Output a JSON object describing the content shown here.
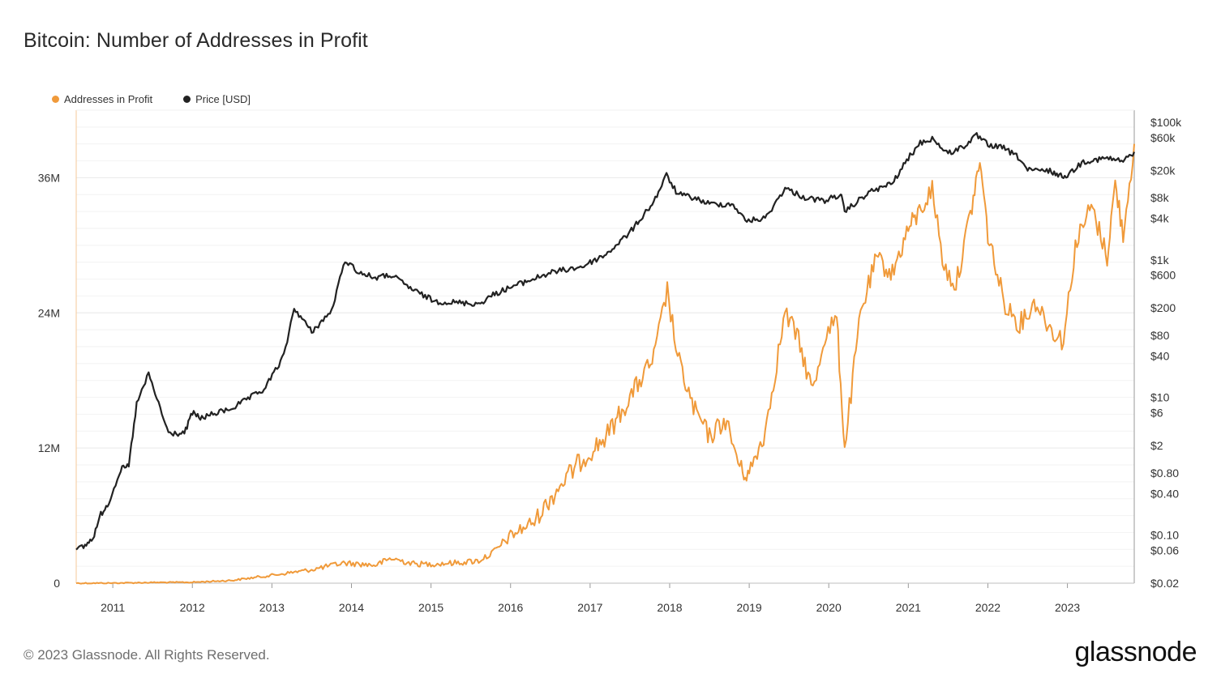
{
  "title": "Bitcoin: Number of Addresses in Profit",
  "footer": "© 2023 Glassnode. All Rights Reserved.",
  "brand": "glassnode",
  "colors": {
    "addresses": "#f09a3a",
    "price": "#222222",
    "grid": "#ebebeb",
    "axis": "#9a9a9a"
  },
  "legend": [
    {
      "label": "Addresses in Profit",
      "color": "#f09a3a"
    },
    {
      "label": "Price [USD]",
      "color": "#222222"
    }
  ],
  "chart_data": {
    "type": "line",
    "title": "Bitcoin: Number of Addresses in Profit",
    "x_ticks": [
      "2011",
      "2012",
      "2013",
      "2014",
      "2015",
      "2016",
      "2017",
      "2018",
      "2019",
      "2020",
      "2021",
      "2022",
      "2023"
    ],
    "x_range": [
      2010.54,
      2023.84
    ],
    "y_left": {
      "ticks": [
        0,
        12000000,
        24000000,
        36000000
      ],
      "tick_labels": [
        "0",
        "12M",
        "24M",
        "36M"
      ],
      "range": [
        0,
        42000000
      ]
    },
    "y_right": {
      "scale": "log",
      "range": [
        0.02,
        150000
      ],
      "ticks": [
        0.02,
        0.06,
        0.1,
        0.4,
        0.8,
        2,
        6,
        10,
        40,
        80,
        200,
        600,
        1000,
        4000,
        8000,
        20000,
        60000,
        100000
      ],
      "tick_labels": [
        "$0.02",
        "$0.06",
        "$0.10",
        "$0.40",
        "$0.80",
        "$2",
        "$6",
        "$10",
        "$40",
        "$80",
        "$200",
        "$600",
        "$1k",
        "$4k",
        "$8k",
        "$20k",
        "$60k",
        "$100k"
      ]
    },
    "grid": true,
    "legend_position": "top-left",
    "series": [
      {
        "name": "Addresses in Profit",
        "axis": "left",
        "x": [
          2010.54,
          2011.0,
          2011.5,
          2012.0,
          2012.5,
          2013.0,
          2013.5,
          2013.9,
          2014.3,
          2014.5,
          2014.8,
          2015.0,
          2015.3,
          2015.6,
          2015.8,
          2016.0,
          2016.3,
          2016.6,
          2016.9,
          2017.2,
          2017.5,
          2017.8,
          2017.97,
          2018.1,
          2018.3,
          2018.5,
          2018.7,
          2018.9,
          2019.0,
          2019.2,
          2019.45,
          2019.6,
          2019.8,
          2019.95,
          2020.1,
          2020.2,
          2020.4,
          2020.6,
          2020.8,
          2021.0,
          2021.1,
          2021.3,
          2021.45,
          2021.6,
          2021.8,
          2021.9,
          2022.0,
          2022.2,
          2022.4,
          2022.6,
          2022.8,
          2022.95,
          2023.1,
          2023.3,
          2023.5,
          2023.6,
          2023.7,
          2023.84
        ],
        "values": [
          0,
          10000,
          60000,
          80000,
          250000,
          700000,
          1200000,
          1800000,
          1600000,
          2200000,
          1700000,
          1700000,
          1800000,
          2000000,
          2800000,
          4200000,
          5500000,
          8500000,
          11000000,
          13000000,
          16500000,
          20000000,
          26000000,
          20000000,
          15500000,
          13000000,
          14500000,
          10000000,
          9700000,
          13500000,
          24000000,
          22000000,
          17000000,
          22000000,
          23500000,
          12000000,
          24000000,
          28800000,
          27500000,
          31500000,
          32500000,
          35000000,
          28000000,
          26500000,
          33500000,
          37500000,
          31000000,
          25000000,
          23000000,
          25000000,
          22500000,
          21500000,
          30000000,
          33500000,
          29000000,
          35500000,
          31000000,
          39000000
        ]
      },
      {
        "name": "Price [USD]",
        "axis": "right",
        "x": [
          2010.54,
          2010.65,
          2010.75,
          2010.85,
          2010.95,
          2011.1,
          2011.2,
          2011.3,
          2011.45,
          2011.7,
          2011.9,
          2012.0,
          2012.1,
          2012.5,
          2012.9,
          2013.15,
          2013.28,
          2013.5,
          2013.75,
          2013.92,
          2014.1,
          2014.3,
          2014.5,
          2014.8,
          2015.05,
          2015.3,
          2015.6,
          2015.8,
          2016.0,
          2016.5,
          2016.9,
          2017.2,
          2017.5,
          2017.8,
          2017.96,
          2018.1,
          2018.3,
          2018.5,
          2018.8,
          2018.95,
          2019.2,
          2019.45,
          2019.7,
          2019.95,
          2020.15,
          2020.2,
          2020.5,
          2020.8,
          2021.0,
          2021.15,
          2021.3,
          2021.5,
          2021.7,
          2021.86,
          2022.0,
          2022.2,
          2022.4,
          2022.5,
          2022.8,
          2022.9,
          2023.0,
          2023.2,
          2023.5,
          2023.7,
          2023.84
        ],
        "values": [
          0.06,
          0.07,
          0.09,
          0.2,
          0.3,
          0.9,
          1.0,
          8,
          22,
          3,
          3,
          6,
          5,
          7,
          13,
          40,
          200,
          90,
          180,
          1000,
          650,
          550,
          600,
          350,
          250,
          240,
          230,
          320,
          400,
          650,
          800,
          1200,
          2500,
          7000,
          17000,
          9000,
          8000,
          6500,
          6400,
          3700,
          4000,
          11000,
          8000,
          7200,
          9000,
          5000,
          9500,
          13000,
          30000,
          50000,
          58000,
          35000,
          45000,
          64000,
          47000,
          42000,
          30000,
          20000,
          19500,
          16500,
          17000,
          27000,
          30000,
          27000,
          37000
        ]
      }
    ]
  }
}
